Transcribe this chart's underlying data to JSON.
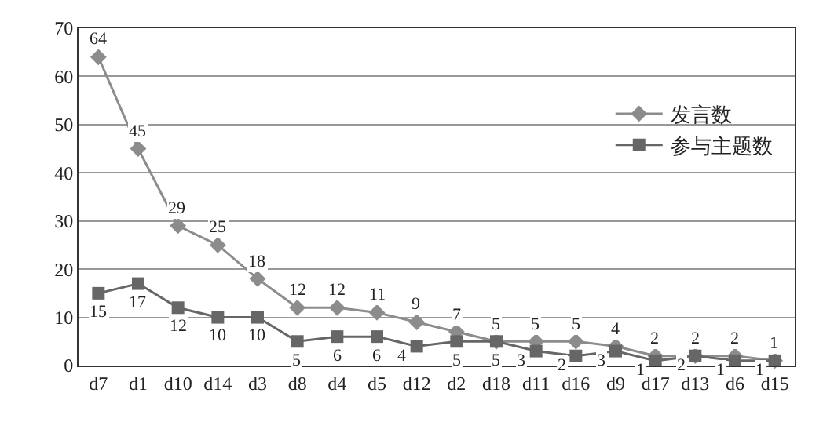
{
  "chart_data": {
    "type": "line",
    "categories": [
      "d7",
      "d1",
      "d10",
      "d14",
      "d3",
      "d8",
      "d4",
      "d5",
      "d12",
      "d2",
      "d18",
      "d11",
      "d16",
      "d9",
      "d17",
      "d13",
      "d6",
      "d15"
    ],
    "series": [
      {
        "name": "发言数",
        "color": "#8c8c8c",
        "marker": "diamond",
        "values": [
          64,
          45,
          29,
          25,
          18,
          12,
          12,
          11,
          9,
          7,
          5,
          5,
          5,
          4,
          2,
          2,
          2,
          1
        ]
      },
      {
        "name": "参与主题数",
        "color": "#666666",
        "marker": "square",
        "values": [
          15,
          17,
          12,
          10,
          10,
          5,
          6,
          6,
          4,
          5,
          5,
          3,
          2,
          3,
          1,
          2,
          1,
          1
        ]
      }
    ],
    "ylim": [
      0,
      70
    ],
    "yticks": [
      0,
      10,
      20,
      30,
      40,
      50,
      60,
      70
    ],
    "grid": "y",
    "legend": "right",
    "data_labels": true,
    "line_style": "solid"
  }
}
